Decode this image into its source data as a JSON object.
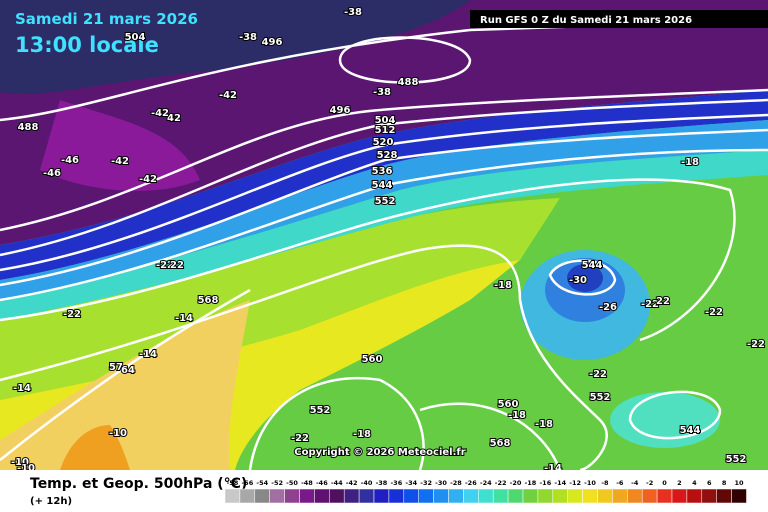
{
  "header": {
    "title": "Samedi 21 mars 2026",
    "time": "13:00 locale",
    "run": "Run GFS 0 Z du Samedi 21 mars 2026"
  },
  "map": {
    "labels": [
      "-38",
      "-38",
      "504",
      "496",
      "-42",
      "-38",
      "488",
      "488",
      "-42",
      "42",
      "496",
      "504",
      "512",
      "520",
      "528",
      "-46",
      "-42",
      "-46",
      "-42",
      "536",
      "544",
      "552",
      "-18",
      "-22",
      "22",
      "-18",
      "544",
      "-30",
      "568",
      "-22",
      "-14",
      "-26",
      "-22",
      "22",
      "-22",
      "-22",
      "-14",
      "57",
      "64",
      "560",
      "-14",
      "-22",
      "552",
      "560",
      "-18",
      "-18",
      "552",
      "-10",
      "-22",
      "-18",
      "568",
      "544",
      "-14",
      "552",
      "-10",
      "-10"
    ]
  },
  "footer": {
    "title": "Temp. et Geop. 500hPa (°C)",
    "step": "(+ 12h)",
    "copyright": "Copyright © 2026 Meteociel.fr",
    "scale": [
      "-58",
      "-56",
      "-54",
      "-52",
      "-50",
      "-48",
      "-46",
      "-44",
      "-42",
      "-40",
      "-38",
      "-36",
      "-34",
      "-32",
      "-30",
      "-28",
      "-26",
      "-24",
      "-22",
      "-20",
      "-18",
      "-16",
      "-14",
      "-12",
      "-10",
      "-8",
      "-6",
      "-4",
      "-2",
      "0",
      "2",
      "4",
      "6",
      "8",
      "10"
    ]
  }
}
